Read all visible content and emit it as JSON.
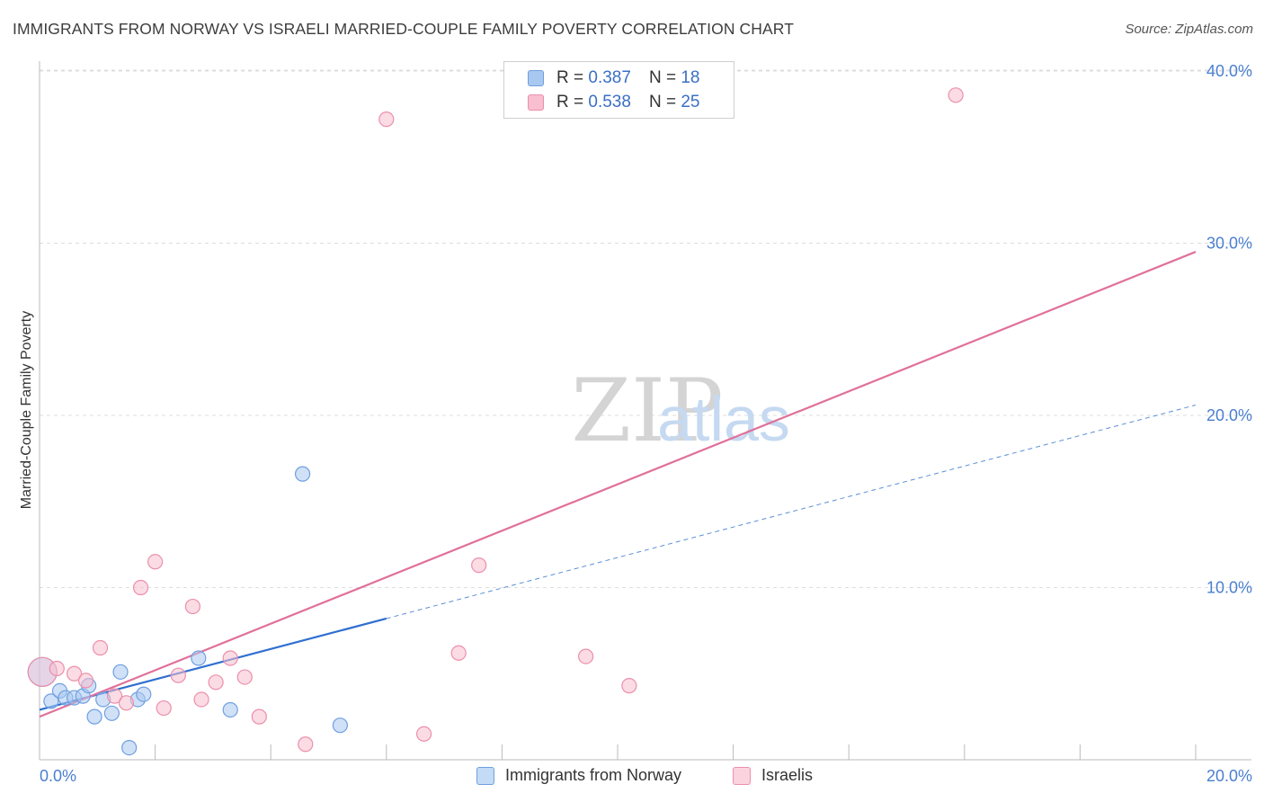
{
  "title": "IMMIGRANTS FROM NORWAY VS ISRAELI MARRIED-COUPLE FAMILY POVERTY CORRELATION CHART",
  "source": "Source: ZipAtlas.com",
  "watermark": {
    "zip": "ZIP",
    "atlas": "atlas"
  },
  "legend": {
    "rows": [
      {
        "r_label": "R =",
        "r_value": "0.387",
        "n_label": "N =",
        "n_value": "18",
        "color": "#a9c8f0",
        "stroke": "#6f9fe0"
      },
      {
        "r_label": "R =",
        "r_value": "0.538",
        "n_label": "N =",
        "n_value": "25",
        "color": "#f7bfd0",
        "stroke": "#ec8fab"
      }
    ]
  },
  "chart_data": {
    "type": "scatter",
    "title": "IMMIGRANTS FROM NORWAY VS ISRAELI MARRIED-COUPLE FAMILY POVERTY CORRELATION CHART",
    "xlabel": "",
    "ylabel": "Married-Couple Family Poverty",
    "xlim": [
      0,
      20
    ],
    "ylim": [
      0,
      42
    ],
    "x_tick_labels": [
      "0.0%",
      "20.0%"
    ],
    "y_ticks": [
      10,
      20,
      30,
      40
    ],
    "y_tick_labels": [
      "10.0%",
      "20.0%",
      "30.0%",
      "40.0%"
    ],
    "grid": true,
    "series": [
      {
        "name": "Immigrants from Norway",
        "color": "#a9c8f0",
        "stroke": "#6f9fe0",
        "line_color": "#2f6fd0",
        "trend": {
          "x": [
            0,
            6
          ],
          "y": [
            2.9,
            8.2
          ],
          "extend_to": [
            20,
            20.6
          ]
        },
        "points": [
          {
            "x": 0.05,
            "y": 5.1,
            "big": true
          },
          {
            "x": 0.2,
            "y": 3.4
          },
          {
            "x": 0.35,
            "y": 4.0
          },
          {
            "x": 0.45,
            "y": 3.6
          },
          {
            "x": 0.6,
            "y": 3.6
          },
          {
            "x": 0.75,
            "y": 3.7
          },
          {
            "x": 0.85,
            "y": 4.3
          },
          {
            "x": 0.95,
            "y": 2.5
          },
          {
            "x": 1.1,
            "y": 3.5
          },
          {
            "x": 1.25,
            "y": 2.7
          },
          {
            "x": 1.4,
            "y": 5.1
          },
          {
            "x": 1.55,
            "y": 0.7
          },
          {
            "x": 1.7,
            "y": 3.5
          },
          {
            "x": 1.8,
            "y": 3.8
          },
          {
            "x": 2.75,
            "y": 5.9
          },
          {
            "x": 3.3,
            "y": 2.9
          },
          {
            "x": 4.55,
            "y": 16.6
          },
          {
            "x": 5.2,
            "y": 2.0
          }
        ]
      },
      {
        "name": "Israelis",
        "color": "#f7bfd0",
        "stroke": "#ec8fab",
        "line_color": "#e0709a",
        "trend": {
          "x": [
            0,
            20
          ],
          "y": [
            2.5,
            29.5
          ]
        },
        "points": [
          {
            "x": 0.05,
            "y": 5.1,
            "big": true
          },
          {
            "x": 0.3,
            "y": 5.3
          },
          {
            "x": 0.6,
            "y": 5.0
          },
          {
            "x": 0.8,
            "y": 4.6
          },
          {
            "x": 1.05,
            "y": 6.5
          },
          {
            "x": 1.3,
            "y": 3.7
          },
          {
            "x": 1.5,
            "y": 3.3
          },
          {
            "x": 1.75,
            "y": 10.0
          },
          {
            "x": 2.0,
            "y": 11.5
          },
          {
            "x": 2.15,
            "y": 3.0
          },
          {
            "x": 2.4,
            "y": 4.9
          },
          {
            "x": 2.65,
            "y": 8.9
          },
          {
            "x": 2.8,
            "y": 3.5
          },
          {
            "x": 3.05,
            "y": 4.5
          },
          {
            "x": 3.3,
            "y": 5.9
          },
          {
            "x": 3.55,
            "y": 4.8
          },
          {
            "x": 3.8,
            "y": 2.5
          },
          {
            "x": 4.6,
            "y": 0.9
          },
          {
            "x": 6.0,
            "y": 37.2
          },
          {
            "x": 6.65,
            "y": 1.5
          },
          {
            "x": 7.25,
            "y": 6.2
          },
          {
            "x": 7.6,
            "y": 11.3
          },
          {
            "x": 9.45,
            "y": 6.0
          },
          {
            "x": 10.2,
            "y": 4.3
          },
          {
            "x": 15.85,
            "y": 38.6
          }
        ]
      }
    ]
  }
}
